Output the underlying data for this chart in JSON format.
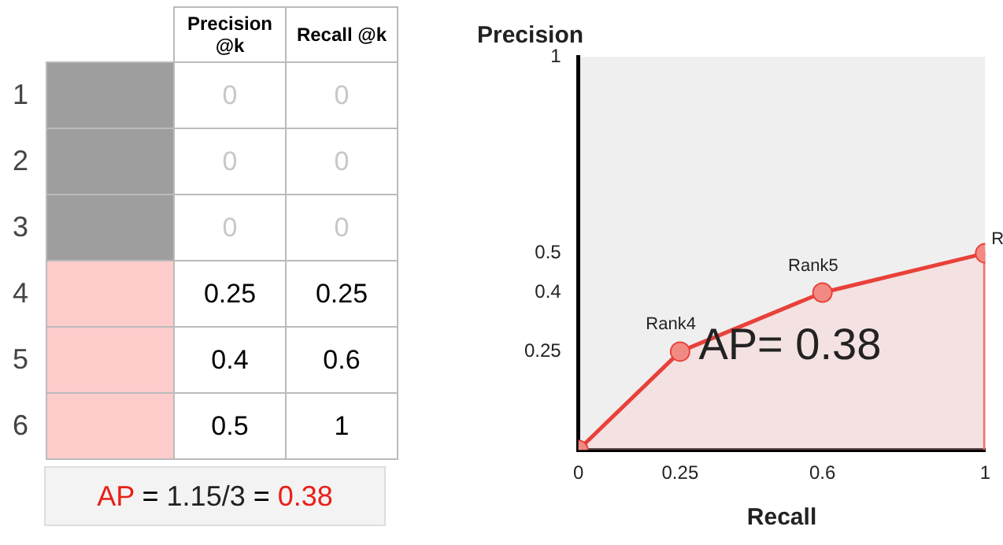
{
  "chart_data": [
    {
      "type": "heatmap",
      "categories": [
        "Precision @k",
        "Recall @k"
      ],
      "y_categories": [
        "1",
        "2",
        "3",
        "4",
        "5",
        "6"
      ],
      "cells": [
        [
          0,
          0
        ],
        [
          0,
          0
        ],
        [
          0,
          0
        ],
        [
          0.25,
          0.25
        ],
        [
          0.4,
          0.6
        ],
        [
          0.5,
          1
        ]
      ],
      "cell_labels": [
        [
          "0",
          "0"
        ],
        [
          "0",
          "0"
        ],
        [
          "0",
          "0"
        ],
        [
          "0.25",
          "0.25"
        ],
        [
          "0.4",
          "0.6"
        ],
        [
          "0.5",
          "1"
        ]
      ],
      "annotations": [
        "AP = 1.15/3 = 0.38"
      ]
    },
    {
      "type": "area",
      "xlabel": "Recall",
      "ylabel": "Precision",
      "series": [
        {
          "type": "area",
          "color": "#e8413a",
          "x": [
            0,
            0.25,
            0.6,
            1
          ],
          "values": [
            0,
            0.25,
            0.4,
            0.5
          ],
          "marker": "circle"
        },
        {
          "type": "line",
          "color": "#e8413a",
          "x": [
            1,
            1
          ],
          "values": [
            0.5,
            0
          ],
          "marker": "none"
        }
      ],
      "xlim": [
        0,
        1
      ],
      "ylim": [
        0,
        1
      ],
      "xticks": [
        0,
        0.25,
        0.6,
        1
      ],
      "yticks": [
        0.25,
        0.4,
        0.5,
        1
      ],
      "grid": false,
      "legend": false,
      "annotations": [
        {
          "text": "Rank4",
          "x": 0.25,
          "y": 0.25
        },
        {
          "text": "Rank5",
          "x": 0.6,
          "y": 0.4
        },
        {
          "text": "R",
          "x": 1,
          "y": 0.5
        },
        "AP= 0.38"
      ]
    }
  ]
}
